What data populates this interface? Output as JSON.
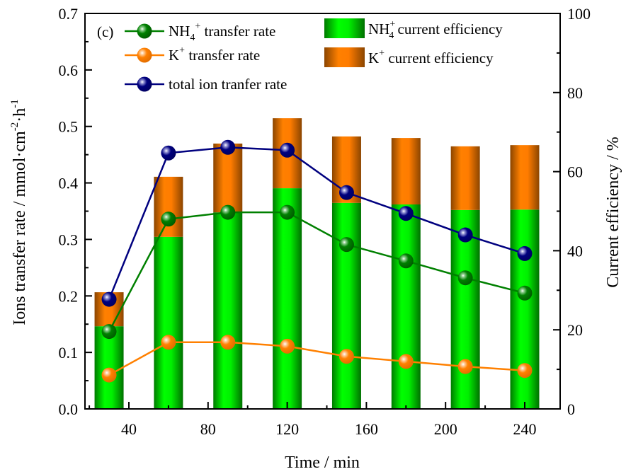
{
  "chart_data": {
    "type": "bar",
    "panel_label": "(c)",
    "title": "",
    "xlabel": "Time / min",
    "ylabel_left": "Ions transfer rate / mmol·cm⁻²·h⁻¹",
    "ylabel_left_parts": {
      "main": "Ions transfer rate / mmol·cm",
      "sup1": "-2",
      "mid": "·h",
      "sup2": "-1"
    },
    "ylabel_right": "Current efficiency / %",
    "xlim": [
      15,
      255
    ],
    "ylim_left": [
      0,
      0.7
    ],
    "ylim_right": [
      0,
      100
    ],
    "x_ticks": [
      40,
      80,
      120,
      160,
      200,
      240
    ],
    "x_minor_ticks": [
      20,
      60,
      100,
      140,
      180,
      220
    ],
    "y_left_ticks": [
      "0.0",
      "0.1",
      "0.2",
      "0.3",
      "0.4",
      "0.5",
      "0.6",
      "0.7"
    ],
    "y_right_ticks": [
      "0",
      "20",
      "40",
      "60",
      "80",
      "100"
    ],
    "x": [
      30,
      60,
      90,
      120,
      150,
      180,
      210,
      240
    ],
    "bar_series": [
      {
        "name": "NH4+ current efficiency",
        "label_main": "NH",
        "label_sub": "4",
        "label_sup": "+",
        "label_rest": " current efficiency",
        "axis": "right",
        "color": "#00ee00",
        "edge_color": "#008000",
        "values": [
          20.9,
          43.5,
          49.7,
          55.8,
          52.1,
          51.7,
          50.3,
          50.4
        ]
      },
      {
        "name": "K+ current efficiency",
        "label_main": "K",
        "label_sup": "+",
        "label_rest": " current efficiency",
        "axis": "right",
        "color": "#ff8000",
        "edge_color": "#8b4500",
        "values": [
          8.6,
          15.2,
          17.4,
          17.7,
          16.8,
          16.8,
          16.1,
          16.3
        ]
      }
    ],
    "line_series": [
      {
        "name": "NH4+ transfer rate",
        "label_main": "NH",
        "label_sub": "4",
        "label_sup": "+",
        "label_rest": " transfer rate",
        "axis": "left",
        "color": "#008000",
        "values": [
          0.137,
          0.336,
          0.348,
          0.348,
          0.291,
          0.262,
          0.232,
          0.205
        ]
      },
      {
        "name": "K+ transfer rate",
        "label_main": "K",
        "label_sup": "+",
        "label_rest": " transfer rate",
        "axis": "left",
        "color": "#ff8000",
        "values": [
          0.06,
          0.118,
          0.118,
          0.111,
          0.093,
          0.084,
          0.075,
          0.068
        ]
      },
      {
        "name": "total ion tranfer rate",
        "label_main": "total ion tranfer rate",
        "axis": "left",
        "color": "#00007f",
        "values": [
          0.194,
          0.453,
          0.463,
          0.458,
          0.383,
          0.346,
          0.308,
          0.275
        ]
      }
    ],
    "legend": {
      "lines_placement": "top-left",
      "bars_placement": "top-center"
    },
    "grid": false
  }
}
